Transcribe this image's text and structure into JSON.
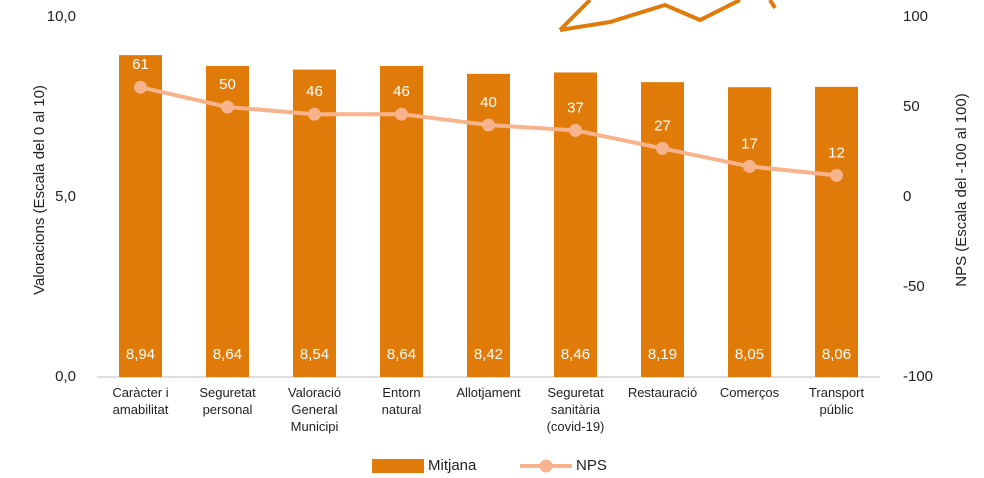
{
  "chart_data": {
    "type": "bar",
    "categories": [
      "Caràcter i\namabilitat",
      "Seguretat\npersonal",
      "Valoració\nGeneral\nMunicipi",
      "Entorn\nnatural",
      "Allotjament",
      "Seguretat\nsanitària\n(covid-19)",
      "Restauració",
      "Comerços",
      "Transport\npúblic"
    ],
    "series": [
      {
        "name": "Mitjana",
        "type": "bar",
        "color": "#e07b0a",
        "values": [
          8.94,
          8.64,
          8.54,
          8.64,
          8.42,
          8.46,
          8.19,
          8.05,
          8.06
        ],
        "value_labels": [
          "8,94",
          "8,64",
          "8,54",
          "8,64",
          "8,42",
          "8,46",
          "8,19",
          "8,05",
          "8,06"
        ]
      },
      {
        "name": "NPS",
        "type": "line",
        "axis": "y2",
        "color": "#f7b48c",
        "values": [
          61,
          50,
          46,
          46,
          40,
          37,
          27,
          17,
          12
        ]
      }
    ],
    "ylim": [
      0,
      10
    ],
    "yticks": [
      {
        "value": 0,
        "label": "0,0"
      },
      {
        "value": 5,
        "label": "5,0"
      },
      {
        "value": 10,
        "label": "10,0"
      }
    ],
    "y2lim": [
      -100,
      100
    ],
    "y2ticks": [
      -100,
      -50,
      0,
      50,
      100
    ],
    "y_label": "Valoracions (Escala  del 0 al 10)",
    "y2_label": "NPS (Escala  del -100 al 100)",
    "legend": "bottom"
  }
}
